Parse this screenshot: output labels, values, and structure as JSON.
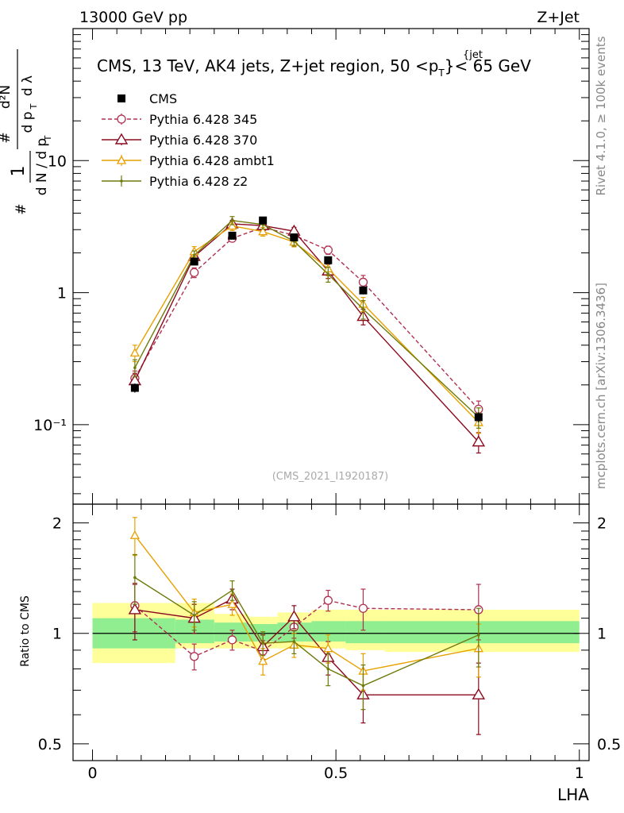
{
  "header": {
    "energy_label": "13000 GeV pp",
    "process_label": "Z+Jet",
    "side_rivet": "Rivet 4.1.0, ≥ 100k events",
    "side_source": "mcplots.cern.ch [arXiv:1306.3436]",
    "analysis_id": "(CMS_2021_I1920187)"
  },
  "colors": {
    "cms": "#000000",
    "p345": "#b03050",
    "p370": "#8b0a1e",
    "ambt1": "#e8a000",
    "z2": "#6e7a0a",
    "band_stat": "#90ee90",
    "band_total": "#ffff99"
  },
  "chart_data": [
    {
      "type": "line",
      "panel": "main",
      "title_parts": {
        "main": "CMS, 13 TeV, AK4 jets, Z+jet region, 50 <p",
        "sub": "T",
        "sup": "{jet",
        "tail": "}< 65 GeV"
      },
      "ylabel": "1/N dN/dp_T d²N/dp_T dλ",
      "yscale": "log",
      "xlim": [
        -0.04,
        1.02
      ],
      "ylim": [
        0.025,
        100
      ],
      "x_ticks": [
        0,
        0.5,
        1
      ],
      "y_tick_labels": [
        "10⁻¹",
        "1",
        "10"
      ],
      "legend_position": "top-left",
      "x": [
        0.087,
        0.209,
        0.287,
        0.35,
        0.414,
        0.484,
        0.556,
        0.793
      ],
      "series": [
        {
          "name": "CMS",
          "key": "cms",
          "style": "square",
          "values": [
            0.19,
            1.72,
            2.7,
            3.52,
            2.62,
            1.76,
            1.04,
            0.114
          ],
          "errors": [
            0.015,
            0.1,
            0.15,
            0.2,
            0.15,
            0.1,
            0.07,
            0.01
          ]
        },
        {
          "name": "Pythia 6.428 345",
          "key": "p345",
          "style": "circle-dashed",
          "values": [
            0.225,
            1.42,
            2.58,
            3.12,
            2.72,
            2.1,
            1.2,
            0.131
          ],
          "errors": [
            0.03,
            0.12,
            0.15,
            0.2,
            0.18,
            0.15,
            0.15,
            0.02
          ]
        },
        {
          "name": "Pythia 6.428 370",
          "key": "p370",
          "style": "triangle-open",
          "values": [
            0.215,
            1.88,
            3.32,
            3.22,
            2.92,
            1.46,
            0.66,
            0.074
          ],
          "errors": [
            0.03,
            0.15,
            0.2,
            0.25,
            0.2,
            0.18,
            0.09,
            0.013
          ]
        },
        {
          "name": "Pythia 6.428 ambt1",
          "key": "ambt1",
          "style": "triangle-filled",
          "values": [
            0.35,
            2.05,
            3.2,
            2.9,
            2.42,
            1.52,
            0.82,
            0.104
          ],
          "errors": [
            0.05,
            0.18,
            0.25,
            0.22,
            0.2,
            0.18,
            0.1,
            0.018
          ]
        },
        {
          "name": "Pythia 6.428 z2",
          "key": "z2",
          "style": "dot",
          "values": [
            0.27,
            1.92,
            3.52,
            3.28,
            2.45,
            1.38,
            0.75,
            0.114
          ],
          "errors": [
            0.04,
            0.15,
            0.25,
            0.25,
            0.2,
            0.18,
            0.12,
            0.02
          ]
        }
      ]
    },
    {
      "type": "line",
      "panel": "ratio",
      "ylabel": "Ratio to CMS",
      "xlabel": "LHA",
      "yscale": "log",
      "xlim": [
        -0.04,
        1.02
      ],
      "ylim": [
        0.45,
        2.25
      ],
      "y_ticks": [
        0.5,
        1,
        2
      ],
      "x_ticks": [
        0,
        0.5,
        1
      ],
      "x_tick_labels": [
        "0",
        "0.5",
        "1"
      ],
      "y_tick_labels": [
        "0.5",
        "1",
        "2"
      ],
      "x": [
        0.087,
        0.209,
        0.287,
        0.35,
        0.414,
        0.484,
        0.556,
        0.793
      ],
      "bands": [
        {
          "x0": 0.0,
          "x1": 0.17,
          "total": [
            0.83,
            1.21
          ],
          "stat": [
            0.91,
            1.1
          ]
        },
        {
          "x0": 0.17,
          "x1": 0.25,
          "total": [
            0.91,
            1.21
          ],
          "stat": [
            0.94,
            1.09
          ]
        },
        {
          "x0": 0.25,
          "x1": 0.32,
          "total": [
            0.91,
            1.13
          ],
          "stat": [
            0.95,
            1.07
          ]
        },
        {
          "x0": 0.32,
          "x1": 0.38,
          "total": [
            0.91,
            1.11
          ],
          "stat": [
            0.95,
            1.06
          ]
        },
        {
          "x0": 0.38,
          "x1": 0.45,
          "total": [
            0.91,
            1.14
          ],
          "stat": [
            0.95,
            1.07
          ]
        },
        {
          "x0": 0.45,
          "x1": 0.52,
          "total": [
            0.91,
            1.16
          ],
          "stat": [
            0.95,
            1.08
          ]
        },
        {
          "x0": 0.52,
          "x1": 0.6,
          "total": [
            0.9,
            1.16
          ],
          "stat": [
            0.94,
            1.08
          ]
        },
        {
          "x0": 0.6,
          "x1": 1.0,
          "total": [
            0.89,
            1.16
          ],
          "stat": [
            0.94,
            1.08
          ]
        }
      ],
      "series": [
        {
          "name": "Pythia 6.428 345",
          "key": "p345",
          "style": "circle-dashed",
          "values": [
            1.19,
            0.865,
            0.96,
            0.895,
            1.04,
            1.23,
            1.17,
            1.16
          ],
          "errors": [
            0.18,
            0.07,
            0.06,
            0.06,
            0.07,
            0.08,
            0.15,
            0.2
          ]
        },
        {
          "name": "Pythia 6.428 370",
          "key": "p370",
          "style": "triangle-open",
          "values": [
            1.16,
            1.1,
            1.24,
            0.92,
            1.11,
            0.86,
            0.68,
            0.68
          ],
          "errors": [
            0.2,
            0.1,
            0.08,
            0.07,
            0.08,
            0.09,
            0.11,
            0.15
          ]
        },
        {
          "name": "Pythia 6.428 ambt1",
          "key": "ambt1",
          "style": "triangle-filled",
          "values": [
            1.85,
            1.14,
            1.2,
            0.84,
            0.93,
            0.91,
            0.79,
            0.91
          ],
          "errors": [
            0.22,
            0.1,
            0.08,
            0.07,
            0.07,
            0.08,
            0.09,
            0.15
          ]
        },
        {
          "name": "Pythia 6.428 z2",
          "key": "z2",
          "style": "dot",
          "values": [
            1.42,
            1.12,
            1.31,
            0.94,
            0.95,
            0.8,
            0.72,
            0.99
          ],
          "errors": [
            0.22,
            0.1,
            0.08,
            0.07,
            0.07,
            0.08,
            0.1,
            0.18
          ]
        }
      ]
    }
  ]
}
